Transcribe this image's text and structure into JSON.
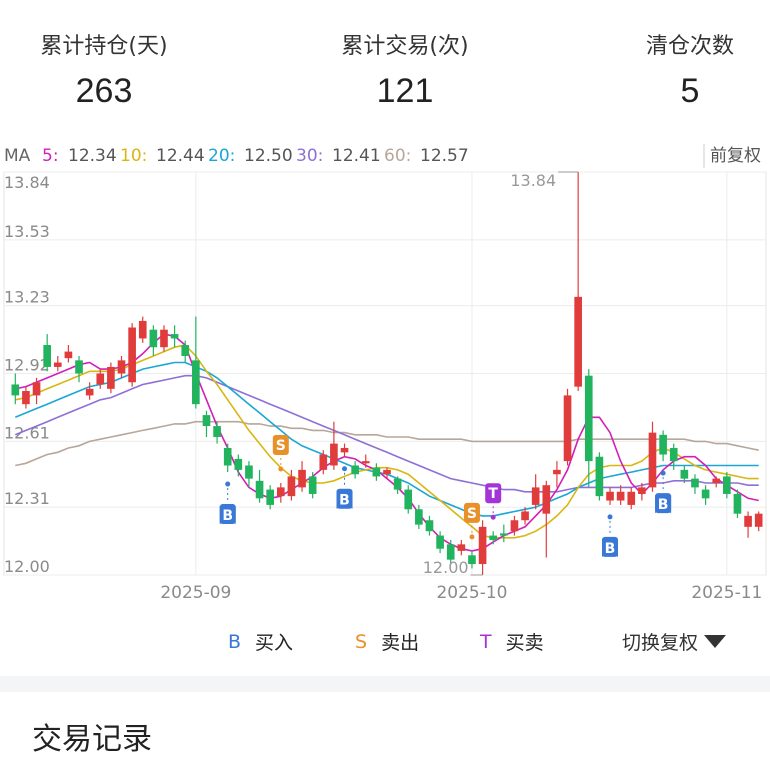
{
  "stats": [
    {
      "label": "累计持仓(天)",
      "value": "263"
    },
    {
      "label": "累计交易(次)",
      "value": "121"
    },
    {
      "label": "清仓次数",
      "value": "5"
    }
  ],
  "chart": {
    "ma_prefix": "MA",
    "ma_values": [
      {
        "label": "5:",
        "value": "12.34",
        "color": "#d21fb8"
      },
      {
        "label": "10:",
        "value": "12.44",
        "color": "#d9b610"
      },
      {
        "label": "20:",
        "value": "12.50",
        "color": "#1aa7d6"
      },
      {
        "label": "30:",
        "value": "12.41",
        "color": "#8f6fd6"
      },
      {
        "label": "60:",
        "value": "12.57",
        "color": "#b8a69a"
      }
    ],
    "adjust_mode": "前复权",
    "high_label": "13.84",
    "low_label": "12.00"
  },
  "chart_data": {
    "type": "candlestick",
    "ylim": [
      12.0,
      13.84
    ],
    "y_ticks": [
      "13.84",
      "13.53",
      "13.23",
      "12.92",
      "12.61",
      "12.31",
      "12.00"
    ],
    "x_ticks": [
      "2025-09",
      "2025-10",
      "2025-11"
    ],
    "candles": [
      [
        12.87,
        12.82,
        12.92,
        12.78
      ],
      [
        12.78,
        12.84,
        12.86,
        12.76
      ],
      [
        12.82,
        12.88,
        12.9,
        12.78
      ],
      [
        13.05,
        12.95,
        13.1,
        12.93
      ],
      [
        12.95,
        12.97,
        13.0,
        12.93
      ],
      [
        12.99,
        13.02,
        13.05,
        12.97
      ],
      [
        12.98,
        12.92,
        13.0,
        12.88
      ],
      [
        12.82,
        12.85,
        12.88,
        12.8
      ],
      [
        12.87,
        12.92,
        12.94,
        12.85
      ],
      [
        12.85,
        12.95,
        12.97,
        12.83
      ],
      [
        12.92,
        12.98,
        13.0,
        12.9
      ],
      [
        12.88,
        13.13,
        13.15,
        12.86
      ],
      [
        13.08,
        13.16,
        13.18,
        13.06
      ],
      [
        13.12,
        13.04,
        13.14,
        13.0
      ],
      [
        13.04,
        13.12,
        13.14,
        13.02
      ],
      [
        13.1,
        13.08,
        13.14,
        13.04
      ],
      [
        13.05,
        13.0,
        13.07,
        12.97
      ],
      [
        12.98,
        12.78,
        13.18,
        12.76
      ],
      [
        12.73,
        12.68,
        12.75,
        12.63
      ],
      [
        12.68,
        12.63,
        12.7,
        12.6
      ],
      [
        12.58,
        12.5,
        12.6,
        12.47
      ],
      [
        12.53,
        12.48,
        12.55,
        12.45
      ],
      [
        12.5,
        12.44,
        12.52,
        12.4
      ],
      [
        12.43,
        12.35,
        12.48,
        12.33
      ],
      [
        12.39,
        12.32,
        12.41,
        12.3
      ],
      [
        12.36,
        12.4,
        12.42,
        12.33
      ],
      [
        12.36,
        12.45,
        12.48,
        12.34
      ],
      [
        12.4,
        12.48,
        12.52,
        12.38
      ],
      [
        12.45,
        12.37,
        12.47,
        12.35
      ],
      [
        12.48,
        12.55,
        12.57,
        12.46
      ],
      [
        12.5,
        12.6,
        12.7,
        12.48
      ],
      [
        12.56,
        12.58,
        12.6,
        12.54
      ],
      [
        12.5,
        12.46,
        12.52,
        12.44
      ],
      [
        12.51,
        12.52,
        12.55,
        12.49
      ],
      [
        12.49,
        12.45,
        12.51,
        12.43
      ],
      [
        12.46,
        12.48,
        12.49,
        12.44
      ],
      [
        12.44,
        12.39,
        12.45,
        12.37
      ],
      [
        12.39,
        12.3,
        12.41,
        12.28
      ],
      [
        12.3,
        12.23,
        12.32,
        12.21
      ],
      [
        12.25,
        12.2,
        12.27,
        12.18
      ],
      [
        12.18,
        12.12,
        12.2,
        12.1
      ],
      [
        12.14,
        12.07,
        12.16,
        12.05
      ],
      [
        12.11,
        12.14,
        12.16,
        12.09
      ],
      [
        12.09,
        12.05,
        12.11,
        12.03
      ],
      [
        12.05,
        12.22,
        12.25,
        12.0
      ],
      [
        12.18,
        12.16,
        12.2,
        12.14
      ],
      [
        12.19,
        12.18,
        12.23,
        12.15
      ],
      [
        12.2,
        12.25,
        12.27,
        12.18
      ],
      [
        12.25,
        12.29,
        12.31,
        12.23
      ],
      [
        12.32,
        12.4,
        12.46,
        12.3
      ],
      [
        12.28,
        12.41,
        12.43,
        12.08
      ],
      [
        12.46,
        12.48,
        12.52,
        12.4
      ],
      [
        12.52,
        12.82,
        12.85,
        12.5
      ],
      [
        12.86,
        13.27,
        13.84,
        12.84
      ],
      [
        12.91,
        12.52,
        12.94,
        12.4
      ],
      [
        12.54,
        12.36,
        12.56,
        12.34
      ],
      [
        12.34,
        12.38,
        12.4,
        12.32
      ],
      [
        12.34,
        12.38,
        12.41,
        12.32
      ],
      [
        12.32,
        12.38,
        12.4,
        12.3
      ],
      [
        12.37,
        12.4,
        12.42,
        12.34
      ],
      [
        12.4,
        12.65,
        12.7,
        12.38
      ],
      [
        12.64,
        12.55,
        12.66,
        12.52
      ],
      [
        12.58,
        12.52,
        12.6,
        12.48
      ],
      [
        12.48,
        12.44,
        12.5,
        12.42
      ],
      [
        12.44,
        12.4,
        12.46,
        12.37
      ],
      [
        12.39,
        12.35,
        12.41,
        12.32
      ],
      [
        12.42,
        12.44,
        12.45,
        12.4
      ],
      [
        12.45,
        12.37,
        12.47,
        12.35
      ],
      [
        12.37,
        12.28,
        12.39,
        12.26
      ],
      [
        12.22,
        12.27,
        12.29,
        12.17
      ],
      [
        12.22,
        12.28,
        12.29,
        12.2
      ]
    ],
    "ma_series": {
      "ma5": [
        12.85,
        12.86,
        12.88,
        12.9,
        12.92,
        12.94,
        12.96,
        12.97,
        12.94,
        12.94,
        12.95,
        12.97,
        13.01,
        13.06,
        13.1,
        13.09,
        13.05,
        12.92,
        12.8,
        12.68,
        12.58,
        12.47,
        12.4,
        12.37,
        12.35,
        12.36,
        12.39,
        12.42,
        12.45,
        12.49,
        12.52,
        12.54,
        12.53,
        12.5,
        12.48,
        12.44,
        12.4,
        12.35,
        12.28,
        12.22,
        12.17,
        12.14,
        12.12,
        12.11,
        12.12,
        12.15,
        12.18,
        12.2,
        12.22,
        12.27,
        12.32,
        12.39,
        12.48,
        12.62,
        12.72,
        12.72,
        12.65,
        12.52,
        12.42,
        12.37,
        12.42,
        12.48,
        12.52,
        12.54,
        12.54,
        12.5,
        12.44,
        12.41,
        12.38,
        12.35,
        12.34
      ],
      "ma10": [
        12.8,
        12.81,
        12.83,
        12.85,
        12.87,
        12.89,
        12.91,
        12.93,
        12.93,
        12.93,
        12.94,
        12.96,
        12.98,
        13.0,
        13.02,
        13.04,
        13.05,
        13.0,
        12.93,
        12.87,
        12.8,
        12.73,
        12.66,
        12.6,
        12.54,
        12.49,
        12.45,
        12.43,
        12.42,
        12.42,
        12.43,
        12.45,
        12.47,
        12.48,
        12.49,
        12.49,
        12.48,
        12.46,
        12.42,
        12.38,
        12.34,
        12.3,
        12.26,
        12.22,
        12.18,
        12.17,
        12.17,
        12.17,
        12.18,
        12.2,
        12.23,
        12.27,
        12.32,
        12.4,
        12.46,
        12.49,
        12.5,
        12.5,
        12.5,
        12.52,
        12.56,
        12.58,
        12.56,
        12.53,
        12.5,
        12.48,
        12.47,
        12.46,
        12.45,
        12.44,
        12.44
      ],
      "ma20": [
        12.72,
        12.74,
        12.76,
        12.78,
        12.8,
        12.82,
        12.84,
        12.86,
        12.87,
        12.88,
        12.9,
        12.92,
        12.94,
        12.95,
        12.96,
        12.97,
        12.97,
        12.95,
        12.93,
        12.9,
        12.86,
        12.82,
        12.78,
        12.74,
        12.7,
        12.66,
        12.62,
        12.59,
        12.57,
        12.55,
        12.53,
        12.51,
        12.49,
        12.48,
        12.47,
        12.46,
        12.44,
        12.42,
        12.39,
        12.36,
        12.34,
        12.32,
        12.3,
        12.28,
        12.27,
        12.27,
        12.28,
        12.29,
        12.3,
        12.31,
        12.33,
        12.35,
        12.37,
        12.4,
        12.42,
        12.44,
        12.45,
        12.46,
        12.47,
        12.48,
        12.49,
        12.5,
        12.5,
        12.5,
        12.5,
        12.5,
        12.5,
        12.5,
        12.5,
        12.5,
        12.5
      ],
      "ma30": [
        12.64,
        12.66,
        12.68,
        12.7,
        12.72,
        12.74,
        12.76,
        12.78,
        12.8,
        12.81,
        12.83,
        12.85,
        12.87,
        12.88,
        12.89,
        12.9,
        12.91,
        12.91,
        12.9,
        12.88,
        12.86,
        12.84,
        12.82,
        12.8,
        12.78,
        12.76,
        12.74,
        12.72,
        12.7,
        12.68,
        12.66,
        12.64,
        12.62,
        12.6,
        12.58,
        12.56,
        12.54,
        12.52,
        12.5,
        12.48,
        12.46,
        12.44,
        12.43,
        12.42,
        12.41,
        12.4,
        12.39,
        12.39,
        12.38,
        12.38,
        12.38,
        12.38,
        12.39,
        12.4,
        12.4,
        12.4,
        12.4,
        12.4,
        12.4,
        12.41,
        12.42,
        12.42,
        12.43,
        12.43,
        12.43,
        12.42,
        12.42,
        12.42,
        12.42,
        12.41,
        12.41
      ],
      "ma60": [
        12.5,
        12.51,
        12.53,
        12.55,
        12.56,
        12.58,
        12.59,
        12.61,
        12.62,
        12.63,
        12.64,
        12.65,
        12.66,
        12.67,
        12.68,
        12.69,
        12.69,
        12.7,
        12.7,
        12.7,
        12.7,
        12.7,
        12.69,
        12.69,
        12.68,
        12.68,
        12.67,
        12.67,
        12.66,
        12.66,
        12.65,
        12.65,
        12.64,
        12.64,
        12.64,
        12.63,
        12.63,
        12.63,
        12.62,
        12.62,
        12.62,
        12.62,
        12.62,
        12.61,
        12.61,
        12.61,
        12.61,
        12.61,
        12.61,
        12.61,
        12.61,
        12.61,
        12.61,
        12.62,
        12.62,
        12.62,
        12.62,
        12.62,
        12.62,
        12.62,
        12.62,
        12.62,
        12.62,
        12.62,
        12.61,
        12.61,
        12.6,
        12.6,
        12.59,
        12.58,
        12.57
      ]
    },
    "trade_marks": [
      {
        "type": "B",
        "index": 20
      },
      {
        "type": "S",
        "index": 25
      },
      {
        "type": "B",
        "index": 31
      },
      {
        "type": "S",
        "index": 43
      },
      {
        "type": "T",
        "index": 45
      },
      {
        "type": "B",
        "index": 56
      },
      {
        "type": "B",
        "index": 61
      }
    ]
  },
  "legend": [
    {
      "mark": "B",
      "label": "买入",
      "color": "#3a78d8"
    },
    {
      "mark": "S",
      "label": "卖出",
      "color": "#e8902a"
    },
    {
      "mark": "T",
      "label": "买卖",
      "color": "#a534d8"
    }
  ],
  "switch_label": "切换复权",
  "section_title": "交易记录"
}
